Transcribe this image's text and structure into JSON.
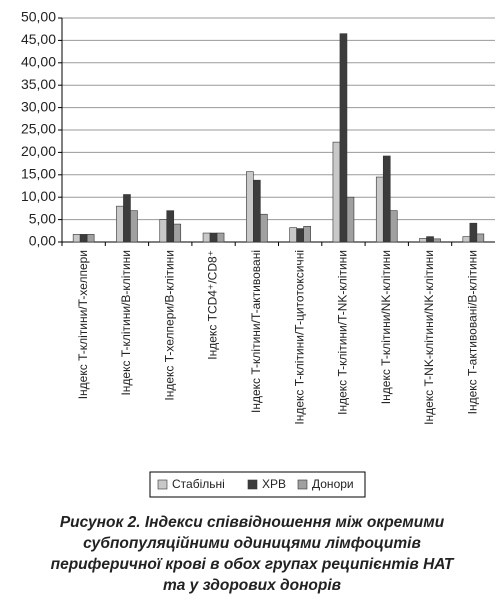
{
  "chart_data": {
    "type": "bar",
    "categories": [
      "Індекс T-клітини/T-хелпери",
      "Індекс T-клітини/B-клітини",
      "Індекс T-хелпери/B-клітини",
      "Індекс TCD4⁺/CD8⁺",
      "Індекс T-клітини/T-активовані",
      "Індекс T-клітини/T-цитотоксичні",
      "Індекс T-клітини/T-NK-клітини",
      "Індекс T-клітини/NK-клітини",
      "Індекс T-NK-клітини/NK-клітини",
      "Індекс T-активовані/B-клітини"
    ],
    "series": [
      {
        "name": "Стабільні",
        "color": "#c8c8c8",
        "values": [
          1.7,
          8,
          5,
          2,
          15.7,
          3.2,
          22.3,
          14.5,
          0.8,
          1.2
        ]
      },
      {
        "name": "ХРВ",
        "color": "#3c3c3c",
        "values": [
          1.7,
          10.6,
          7,
          2,
          13.8,
          3,
          46.5,
          19.2,
          1.2,
          4.2
        ]
      },
      {
        "name": "Донори",
        "color": "#a0a0a0",
        "values": [
          1.7,
          7,
          4,
          2,
          6.2,
          3.5,
          10,
          7,
          0.7,
          1.8
        ]
      }
    ],
    "ylim": [
      0,
      50
    ],
    "yticks": [
      {
        "value": 0,
        "label": "0,00"
      },
      {
        "value": 5,
        "label": "5,00"
      },
      {
        "value": 10,
        "label": "10,00"
      },
      {
        "value": 15,
        "label": "15,00"
      },
      {
        "value": 20,
        "label": "20,00"
      },
      {
        "value": 25,
        "label": "25,00"
      },
      {
        "value": 30,
        "label": "30,00"
      },
      {
        "value": 35,
        "label": "35,00"
      },
      {
        "value": 40,
        "label": "40,00"
      },
      {
        "value": 45,
        "label": "45,00"
      },
      {
        "value": 50,
        "label": "50,00"
      }
    ],
    "grid": true,
    "legend": "bottom",
    "caption": [
      "Рисунок 2. Індекси співвідношення між окремими",
      "субпопуляційними одиницями лімфоцитів",
      "периферичної крові в обох групах реципієнтів НАТ",
      "та у здорових донорів"
    ]
  }
}
